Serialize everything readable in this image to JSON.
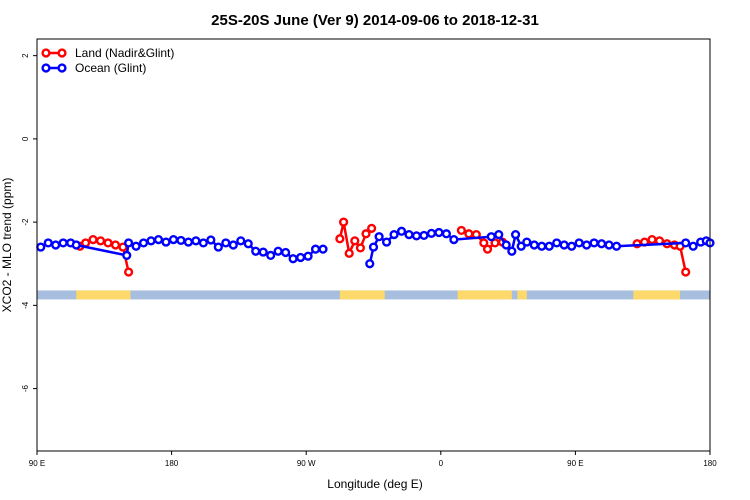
{
  "chart_data": {
    "type": "line",
    "title": "25S-20S June (Ver 9)   2014-09-06 to 2018-12-31",
    "xlabel": "Longitude (deg E)",
    "ylabel": "XCO2 - MLO trend (ppm)",
    "xlim": [
      90,
      450
    ],
    "ylim": [
      -7.5,
      2.4
    ],
    "xticks": [
      90,
      162,
      234,
      306,
      378,
      450
    ],
    "xtick_labels": [
      "90 E",
      "180",
      "90 W",
      "0",
      "90 E",
      "180"
    ],
    "yticks": [
      2,
      0,
      -2,
      -4,
      -6
    ],
    "ytick_labels": [
      "2",
      "0",
      "-2",
      "-4",
      "-6"
    ],
    "legend_position": "top-left",
    "colors": {
      "land": "#ff0000",
      "ocean": "#0000ff",
      "ocean_strip": "#a7bedf",
      "land_strip": "#fdd86a"
    },
    "land_mask": {
      "y": -3.75,
      "land_ranges": [
        [
          111,
          140
        ],
        [
          252,
          276
        ],
        [
          315,
          344
        ],
        [
          347,
          352
        ],
        [
          409,
          434
        ]
      ]
    },
    "series": [
      {
        "name": "Land (Nadir&Glint)",
        "color": "#ff0000",
        "segments": [
          [
            [
              113,
              -2.58
            ],
            [
              116,
              -2.5
            ],
            [
              120,
              -2.42
            ],
            [
              124,
              -2.45
            ],
            [
              128,
              -2.5
            ],
            [
              132,
              -2.55
            ],
            [
              136,
              -2.6
            ],
            [
              139,
              -3.2
            ]
          ],
          [
            [
              252,
              -2.4
            ],
            [
              254,
              -2.0
            ],
            [
              257,
              -2.75
            ],
            [
              260,
              -2.45
            ],
            [
              263,
              -2.62
            ],
            [
              266,
              -2.28
            ],
            [
              269,
              -2.15
            ]
          ],
          [
            [
              317,
              -2.2
            ],
            [
              321,
              -2.28
            ],
            [
              325,
              -2.3
            ],
            [
              329,
              -2.5
            ],
            [
              331,
              -2.65
            ],
            [
              335,
              -2.5
            ],
            [
              339,
              -2.48
            ]
          ],
          [
            [
              411,
              -2.52
            ],
            [
              415,
              -2.48
            ],
            [
              419,
              -2.42
            ],
            [
              423,
              -2.45
            ],
            [
              427,
              -2.52
            ],
            [
              431,
              -2.55
            ],
            [
              434,
              -2.58
            ],
            [
              437,
              -3.2
            ]
          ]
        ]
      },
      {
        "name": "Ocean (Glint)",
        "color": "#0000ff",
        "segments": [
          [
            [
              92,
              -2.6
            ],
            [
              96,
              -2.5
            ],
            [
              100,
              -2.55
            ],
            [
              104,
              -2.5
            ],
            [
              108,
              -2.5
            ],
            [
              111,
              -2.55
            ],
            [
              138,
              -2.8
            ],
            [
              139,
              -2.5
            ],
            [
              143,
              -2.58
            ],
            [
              147,
              -2.5
            ],
            [
              151,
              -2.45
            ],
            [
              155,
              -2.42
            ],
            [
              159,
              -2.48
            ],
            [
              163,
              -2.42
            ],
            [
              167,
              -2.44
            ],
            [
              171,
              -2.48
            ],
            [
              175,
              -2.45
            ],
            [
              179,
              -2.5
            ],
            [
              183,
              -2.43
            ],
            [
              187,
              -2.6
            ],
            [
              191,
              -2.5
            ],
            [
              195,
              -2.55
            ],
            [
              199,
              -2.45
            ],
            [
              203,
              -2.52
            ],
            [
              207,
              -2.7
            ],
            [
              211,
              -2.72
            ],
            [
              215,
              -2.8
            ],
            [
              219,
              -2.7
            ],
            [
              223,
              -2.73
            ],
            [
              227,
              -2.88
            ],
            [
              231,
              -2.85
            ],
            [
              235,
              -2.82
            ],
            [
              239,
              -2.65
            ],
            [
              243,
              -2.65
            ]
          ],
          [
            [
              268,
              -3.0
            ],
            [
              270,
              -2.6
            ],
            [
              273,
              -2.35
            ],
            [
              277,
              -2.48
            ],
            [
              281,
              -2.3
            ],
            [
              285,
              -2.22
            ],
            [
              289,
              -2.3
            ],
            [
              293,
              -2.33
            ],
            [
              297,
              -2.32
            ],
            [
              301,
              -2.27
            ],
            [
              305,
              -2.25
            ],
            [
              309,
              -2.28
            ],
            [
              313,
              -2.42
            ],
            [
              333,
              -2.35
            ],
            [
              337,
              -2.3
            ],
            [
              341,
              -2.55
            ],
            [
              344,
              -2.7
            ],
            [
              346,
              -2.3
            ],
            [
              349,
              -2.58
            ],
            [
              352,
              -2.48
            ],
            [
              356,
              -2.55
            ],
            [
              360,
              -2.58
            ],
            [
              364,
              -2.58
            ],
            [
              368,
              -2.5
            ],
            [
              372,
              -2.55
            ],
            [
              376,
              -2.58
            ],
            [
              380,
              -2.5
            ],
            [
              384,
              -2.55
            ],
            [
              388,
              -2.5
            ],
            [
              392,
              -2.52
            ],
            [
              396,
              -2.55
            ],
            [
              400,
              -2.58
            ],
            [
              437,
              -2.5
            ],
            [
              441,
              -2.58
            ],
            [
              445,
              -2.48
            ],
            [
              448,
              -2.45
            ],
            [
              450,
              -2.5
            ]
          ]
        ]
      }
    ]
  }
}
